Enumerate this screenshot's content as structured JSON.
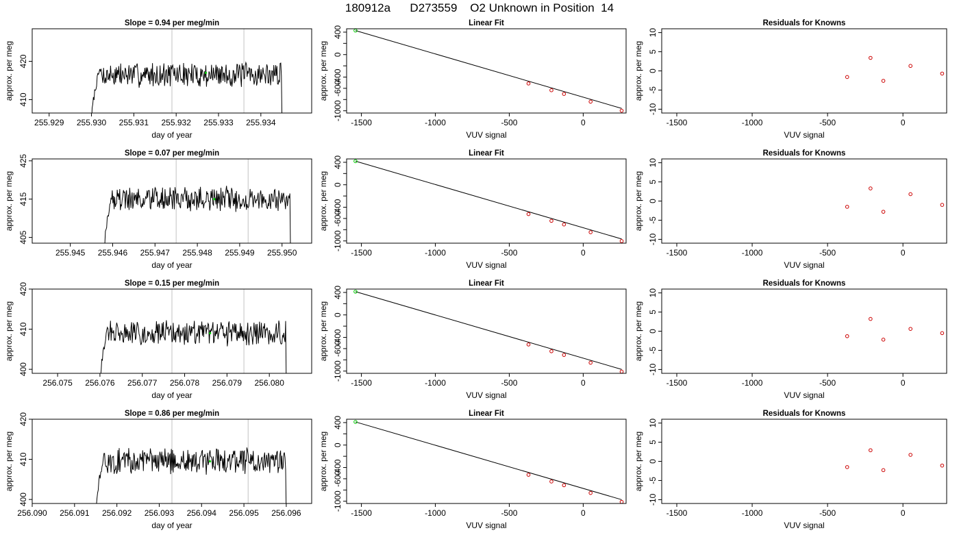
{
  "page_title": "180912a      D273559    O2 Unknown in Position  14",
  "colors": {
    "line": "#000000",
    "vline": "#cccccc",
    "known": "#cc0000",
    "unknown": "#00cc00"
  },
  "chart_data": [
    {
      "type": "line",
      "title": "Slope =  0.94  per meg/min",
      "xlabel": "day of year",
      "ylabel": "approx. per meg",
      "xlim": [
        255.9286,
        255.9352
      ],
      "ylim": [
        406.5,
        428.5
      ],
      "x_ticks": [
        "255.929",
        "255.930",
        "255.931",
        "255.932",
        "255.933",
        "255.934"
      ],
      "y_ticks": [
        "410",
        "420"
      ],
      "x_start": 255.93,
      "x_end": 255.9345,
      "level": 416.5,
      "noise": 2.1,
      "drop_to": 404,
      "vlines": [
        255.9319,
        255.9336
      ],
      "unknown_point": {
        "x": 255.9327,
        "y": 417.0
      },
      "seed": 7
    },
    {
      "type": "line",
      "title": "Slope =  0.07  per meg/min",
      "xlabel": "day of year",
      "ylabel": "approx. per meg",
      "xlim": [
        255.9441,
        255.9507
      ],
      "ylim": [
        403.5,
        425.5
      ],
      "x_ticks": [
        "255.945",
        "255.946",
        "255.947",
        "255.948",
        "255.949",
        "255.950"
      ],
      "y_ticks": [
        "405",
        "415",
        "425"
      ],
      "x_start": 255.9458,
      "x_end": 255.9502,
      "level": 415.0,
      "noise": 2.1,
      "drop_to": 401,
      "vlines": [
        255.9475,
        255.9492
      ],
      "unknown_point": {
        "x": 255.9484,
        "y": 415.0
      },
      "seed": 19
    },
    {
      "type": "line",
      "title": "Slope =  0.15  per meg/min",
      "xlabel": "day of year",
      "ylabel": "approx. per meg",
      "xlim": [
        256.0744,
        256.081
      ],
      "ylim": [
        399.0,
        420.0
      ],
      "x_ticks": [
        "256.075",
        "256.076",
        "256.077",
        "256.078",
        "256.079",
        "256.080"
      ],
      "y_ticks": [
        "400",
        "410",
        "420"
      ],
      "x_start": 256.076,
      "x_end": 256.0804,
      "level": 409.0,
      "noise": 2.0,
      "drop_to": 396,
      "vlines": [
        256.0777,
        256.0794
      ],
      "unknown_point": {
        "x": 256.0786,
        "y": 409.0
      },
      "seed": 31
    },
    {
      "type": "line",
      "title": "Slope =  0.86  per meg/min",
      "xlabel": "day of year",
      "ylabel": "approx. per meg",
      "xlim": [
        256.09,
        256.0966
      ],
      "ylim": [
        399.0,
        420.0
      ],
      "x_ticks": [
        "256.090",
        "256.091",
        "256.092",
        "256.093",
        "256.094",
        "256.095",
        "256.096"
      ],
      "y_ticks": [
        "400",
        "410",
        "420"
      ],
      "x_start": 256.0915,
      "x_end": 256.096,
      "level": 409.5,
      "noise": 2.1,
      "drop_to": 396,
      "vlines": [
        256.0933,
        256.0951
      ],
      "unknown_point": {
        "x": 256.0942,
        "y": 409.5
      },
      "seed": 43
    },
    {
      "type": "scatter",
      "title": "Linear Fit",
      "xlabel": "VUV signal",
      "ylabel": "approx. per meg",
      "xlim": [
        -1600,
        290
      ],
      "ylim": [
        -1040,
        460
      ],
      "x_ticks": [
        -1500,
        -1000,
        -500,
        0
      ],
      "y_ticks": [
        -1000,
        -800,
        -600,
        -400,
        -200,
        0,
        200,
        400
      ],
      "y_tick_labels": [
        "-1000",
        "-600",
        "-400",
        "0",
        "400"
      ],
      "fit_line": [
        [
          -1540,
          428
        ],
        [
          260,
          -958
        ]
      ],
      "known_points": [
        [
          -370,
          -514
        ],
        [
          -215,
          -634
        ],
        [
          -130,
          -700
        ],
        [
          50,
          -838
        ],
        [
          260,
          -998
        ]
      ],
      "unknown_points": [
        [
          -1540,
          428
        ]
      ]
    },
    {
      "type": "scatter",
      "title": "Linear Fit",
      "xlabel": "VUV signal",
      "ylabel": "approx. per meg",
      "xlim": [
        -1600,
        290
      ],
      "ylim": [
        -1040,
        460
      ],
      "x_ticks": [
        -1500,
        -1000,
        -500,
        0
      ],
      "y_ticks": [
        -1000,
        -800,
        -600,
        -400,
        -200,
        0,
        200,
        400
      ],
      "y_tick_labels": [
        "-1000",
        "-600",
        "-400",
        "0",
        "400"
      ],
      "fit_line": [
        [
          -1540,
          420
        ],
        [
          260,
          -965
        ]
      ],
      "known_points": [
        [
          -370,
          -522
        ],
        [
          -215,
          -642
        ],
        [
          -130,
          -707
        ],
        [
          50,
          -845
        ],
        [
          260,
          -1003
        ]
      ],
      "unknown_points": [
        [
          -1540,
          420
        ]
      ]
    },
    {
      "type": "scatter",
      "title": "Linear Fit",
      "xlabel": "VUV signal",
      "ylabel": "approx. per meg",
      "xlim": [
        -1600,
        290
      ],
      "ylim": [
        -1040,
        460
      ],
      "x_ticks": [
        -1500,
        -1000,
        -500,
        0
      ],
      "y_ticks": [
        -1000,
        -800,
        -600,
        -400,
        -200,
        0,
        200,
        400
      ],
      "y_tick_labels": [
        "-1000",
        "-600",
        "-400",
        "0",
        "400"
      ],
      "fit_line": [
        [
          -1540,
          414
        ],
        [
          260,
          -970
        ]
      ],
      "known_points": [
        [
          -370,
          -527
        ],
        [
          -215,
          -647
        ],
        [
          -130,
          -713
        ],
        [
          50,
          -851
        ],
        [
          260,
          -1009
        ]
      ],
      "unknown_points": [
        [
          -1540,
          414
        ]
      ]
    },
    {
      "type": "scatter",
      "title": "Linear Fit",
      "xlabel": "VUV signal",
      "ylabel": "approx. per meg",
      "xlim": [
        -1600,
        290
      ],
      "ylim": [
        -1040,
        460
      ],
      "x_ticks": [
        -1500,
        -1000,
        -500,
        0
      ],
      "y_ticks": [
        -1000,
        -800,
        -600,
        -400,
        -200,
        0,
        200,
        400
      ],
      "y_tick_labels": [
        "-1000",
        "-600",
        "-400",
        "0",
        "400"
      ],
      "fit_line": [
        [
          -1540,
          412
        ],
        [
          260,
          -972
        ]
      ],
      "known_points": [
        [
          -370,
          -529
        ],
        [
          -215,
          -649
        ],
        [
          -130,
          -715
        ],
        [
          50,
          -853
        ],
        [
          260,
          -1011
        ]
      ],
      "unknown_points": [
        [
          -1540,
          412
        ]
      ]
    },
    {
      "type": "scatter",
      "title": "Residuals for Knowns",
      "xlabel": "VUV signal",
      "ylabel": "approx. per meg",
      "xlim": [
        -1600,
        290
      ],
      "ylim": [
        -11,
        11
      ],
      "x_ticks": [
        -1500,
        -1000,
        -500,
        0
      ],
      "y_ticks": [
        -10,
        -5,
        0,
        5,
        10
      ],
      "y_tick_labels": [
        "-10",
        "-5",
        "0",
        "5",
        "10"
      ],
      "known_points": [
        [
          -370,
          -1.6
        ],
        [
          -215,
          3.4
        ],
        [
          -130,
          -2.6
        ],
        [
          50,
          1.3
        ],
        [
          260,
          -0.7
        ]
      ]
    },
    {
      "type": "scatter",
      "title": "Residuals for Knowns",
      "xlabel": "VUV signal",
      "ylabel": "approx. per meg",
      "xlim": [
        -1600,
        290
      ],
      "ylim": [
        -11,
        11
      ],
      "x_ticks": [
        -1500,
        -1000,
        -500,
        0
      ],
      "y_ticks": [
        -10,
        -5,
        0,
        5,
        10
      ],
      "y_tick_labels": [
        "-10",
        "-5",
        "0",
        "5",
        "10"
      ],
      "known_points": [
        [
          -370,
          -1.5
        ],
        [
          -215,
          3.3
        ],
        [
          -130,
          -2.8
        ],
        [
          50,
          1.8
        ],
        [
          260,
          -1.0
        ]
      ]
    },
    {
      "type": "scatter",
      "title": "Residuals for Knowns",
      "xlabel": "VUV signal",
      "ylabel": "approx. per meg",
      "xlim": [
        -1600,
        290
      ],
      "ylim": [
        -11,
        11
      ],
      "x_ticks": [
        -1500,
        -1000,
        -500,
        0
      ],
      "y_ticks": [
        -10,
        -5,
        0,
        5,
        10
      ],
      "y_tick_labels": [
        "-10",
        "-5",
        "0",
        "5",
        "10"
      ],
      "known_points": [
        [
          -370,
          -1.3
        ],
        [
          -215,
          3.2
        ],
        [
          -130,
          -2.2
        ],
        [
          50,
          0.6
        ],
        [
          260,
          -0.5
        ]
      ]
    },
    {
      "type": "scatter",
      "title": "Residuals for Knowns",
      "xlabel": "VUV signal",
      "ylabel": "approx. per meg",
      "xlim": [
        -1600,
        290
      ],
      "ylim": [
        -11,
        11
      ],
      "x_ticks": [
        -1500,
        -1000,
        -500,
        0
      ],
      "y_ticks": [
        -10,
        -5,
        0,
        5,
        10
      ],
      "y_tick_labels": [
        "-10",
        "-5",
        "0",
        "5",
        "10"
      ],
      "known_points": [
        [
          -370,
          -1.5
        ],
        [
          -215,
          2.9
        ],
        [
          -130,
          -2.3
        ],
        [
          50,
          1.7
        ],
        [
          260,
          -1.1
        ]
      ]
    }
  ]
}
